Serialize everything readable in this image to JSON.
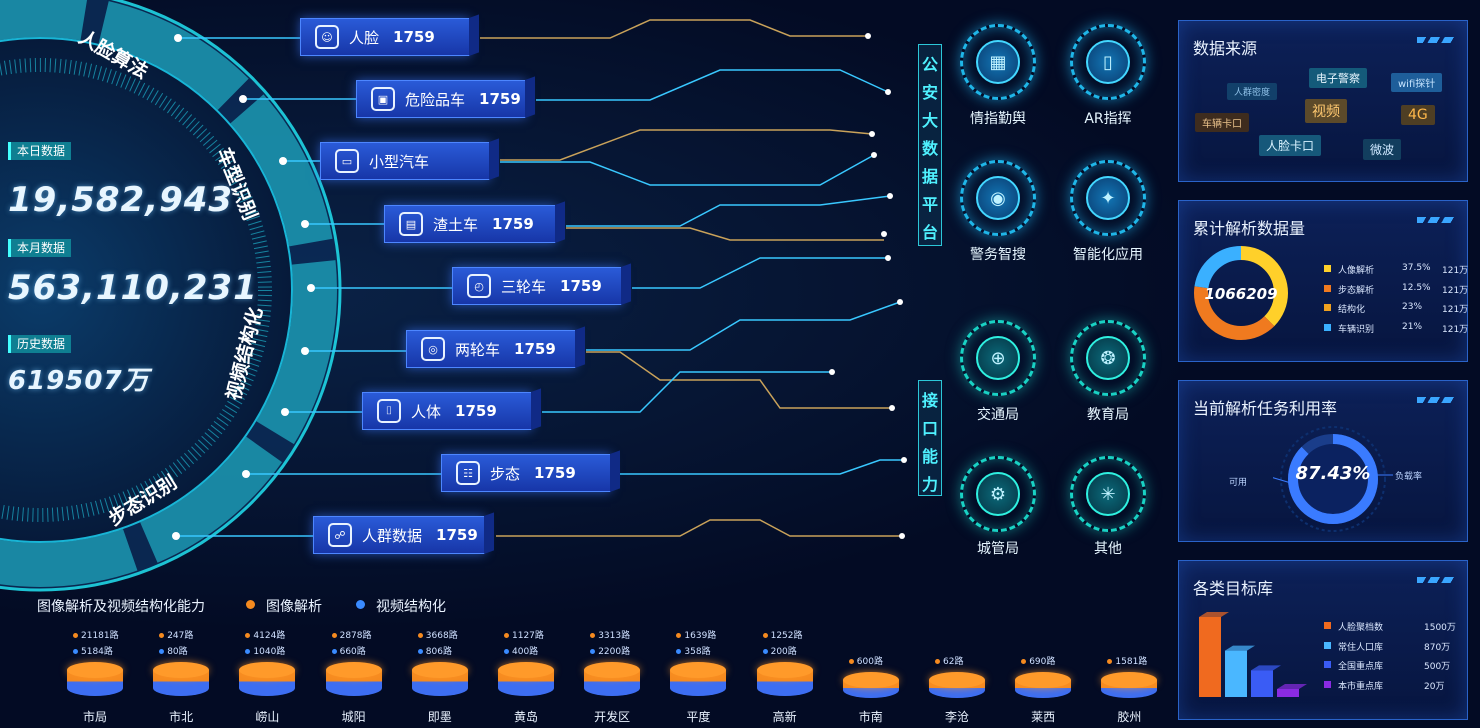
{
  "stats": {
    "day_label": "本日数据",
    "day_value": "19,582,943",
    "month_label": "本月数据",
    "month_value": "563,110,231",
    "history_label": "历史数据",
    "history_value": "619507万"
  },
  "ring_segments": [
    "人脸算法",
    "车型识别",
    "视频结构化",
    "步态识别"
  ],
  "categories": [
    {
      "name": "人脸",
      "count": "1759"
    },
    {
      "name": "危险品车",
      "count": "1759"
    },
    {
      "name": "小型汽车",
      "count": ""
    },
    {
      "name": "渣土车",
      "count": "1759"
    },
    {
      "name": "三轮车",
      "count": "1759"
    },
    {
      "name": "两轮车",
      "count": "1759"
    },
    {
      "name": "人体",
      "count": "1759"
    },
    {
      "name": "步态",
      "count": "1759"
    },
    {
      "name": "人群数据",
      "count": "1759"
    }
  ],
  "platform_label": "公安大数据平台",
  "interface_label": "接口能力",
  "platform_apps": [
    "情指勤舆",
    "AR指挥",
    "警务智搜",
    "智能化应用"
  ],
  "interface_apps": [
    "交通局",
    "教育局",
    "城管局",
    "其他"
  ],
  "panel_sources": {
    "title": "数据来源",
    "tags": [
      "人群密度",
      "电子警察",
      "wifi探针",
      "视频",
      "4G",
      "车辆卡口",
      "人脸卡口",
      "微波"
    ]
  },
  "panel_analysis": {
    "title": "累计解析数据量",
    "total": "1066209",
    "items": [
      {
        "name": "人像解析",
        "pct": "37.5%",
        "val": "121万",
        "color": "#ffd02a"
      },
      {
        "name": "步态解析",
        "pct": "12.5%",
        "val": "121万",
        "color": "#f07a1f"
      },
      {
        "name": "结构化",
        "pct": "23%",
        "val": "121万",
        "color": "#f0a11f"
      },
      {
        "name": "车辆识别",
        "pct": "21%",
        "val": "121万",
        "color": "#3ab0ff"
      }
    ]
  },
  "panel_usage": {
    "title": "当前解析任务利用率",
    "value": "87.43%",
    "left_label": "可用",
    "right_label": "负载率"
  },
  "panel_targets": {
    "title": "各类目标库",
    "items": [
      {
        "name": "人脸聚档数",
        "val": "1500万",
        "color": "#f06a1f"
      },
      {
        "name": "常住人口库",
        "val": "870万",
        "color": "#4ab7ff"
      },
      {
        "name": "全国重点库",
        "val": "500万",
        "color": "#3a5cf5"
      },
      {
        "name": "本市重点库",
        "val": "20万",
        "color": "#8a2be2"
      }
    ]
  },
  "bottom": {
    "title": "图像解析及视频结构化能力",
    "legend_image": "图像解析",
    "legend_video": "视频结构化",
    "districts": [
      {
        "name": "市局",
        "img": "21181路",
        "vid": "5184路"
      },
      {
        "name": "市北",
        "img": "247路",
        "vid": "80路"
      },
      {
        "name": "崂山",
        "img": "4124路",
        "vid": "1040路"
      },
      {
        "name": "城阳",
        "img": "2878路",
        "vid": "660路"
      },
      {
        "name": "即墨",
        "img": "3668路",
        "vid": "806路"
      },
      {
        "name": "黄岛",
        "img": "1127路",
        "vid": "400路"
      },
      {
        "name": "开发区",
        "img": "3313路",
        "vid": "2200路"
      },
      {
        "name": "平度",
        "img": "1639路",
        "vid": "358路"
      },
      {
        "name": "高新",
        "img": "1252路",
        "vid": "200路"
      },
      {
        "name": "市南",
        "img": "600路",
        "vid": ""
      },
      {
        "name": "李沧",
        "img": "62路",
        "vid": ""
      },
      {
        "name": "莱西",
        "img": "690路",
        "vid": ""
      },
      {
        "name": "胶州",
        "img": "1581路",
        "vid": ""
      }
    ]
  }
}
